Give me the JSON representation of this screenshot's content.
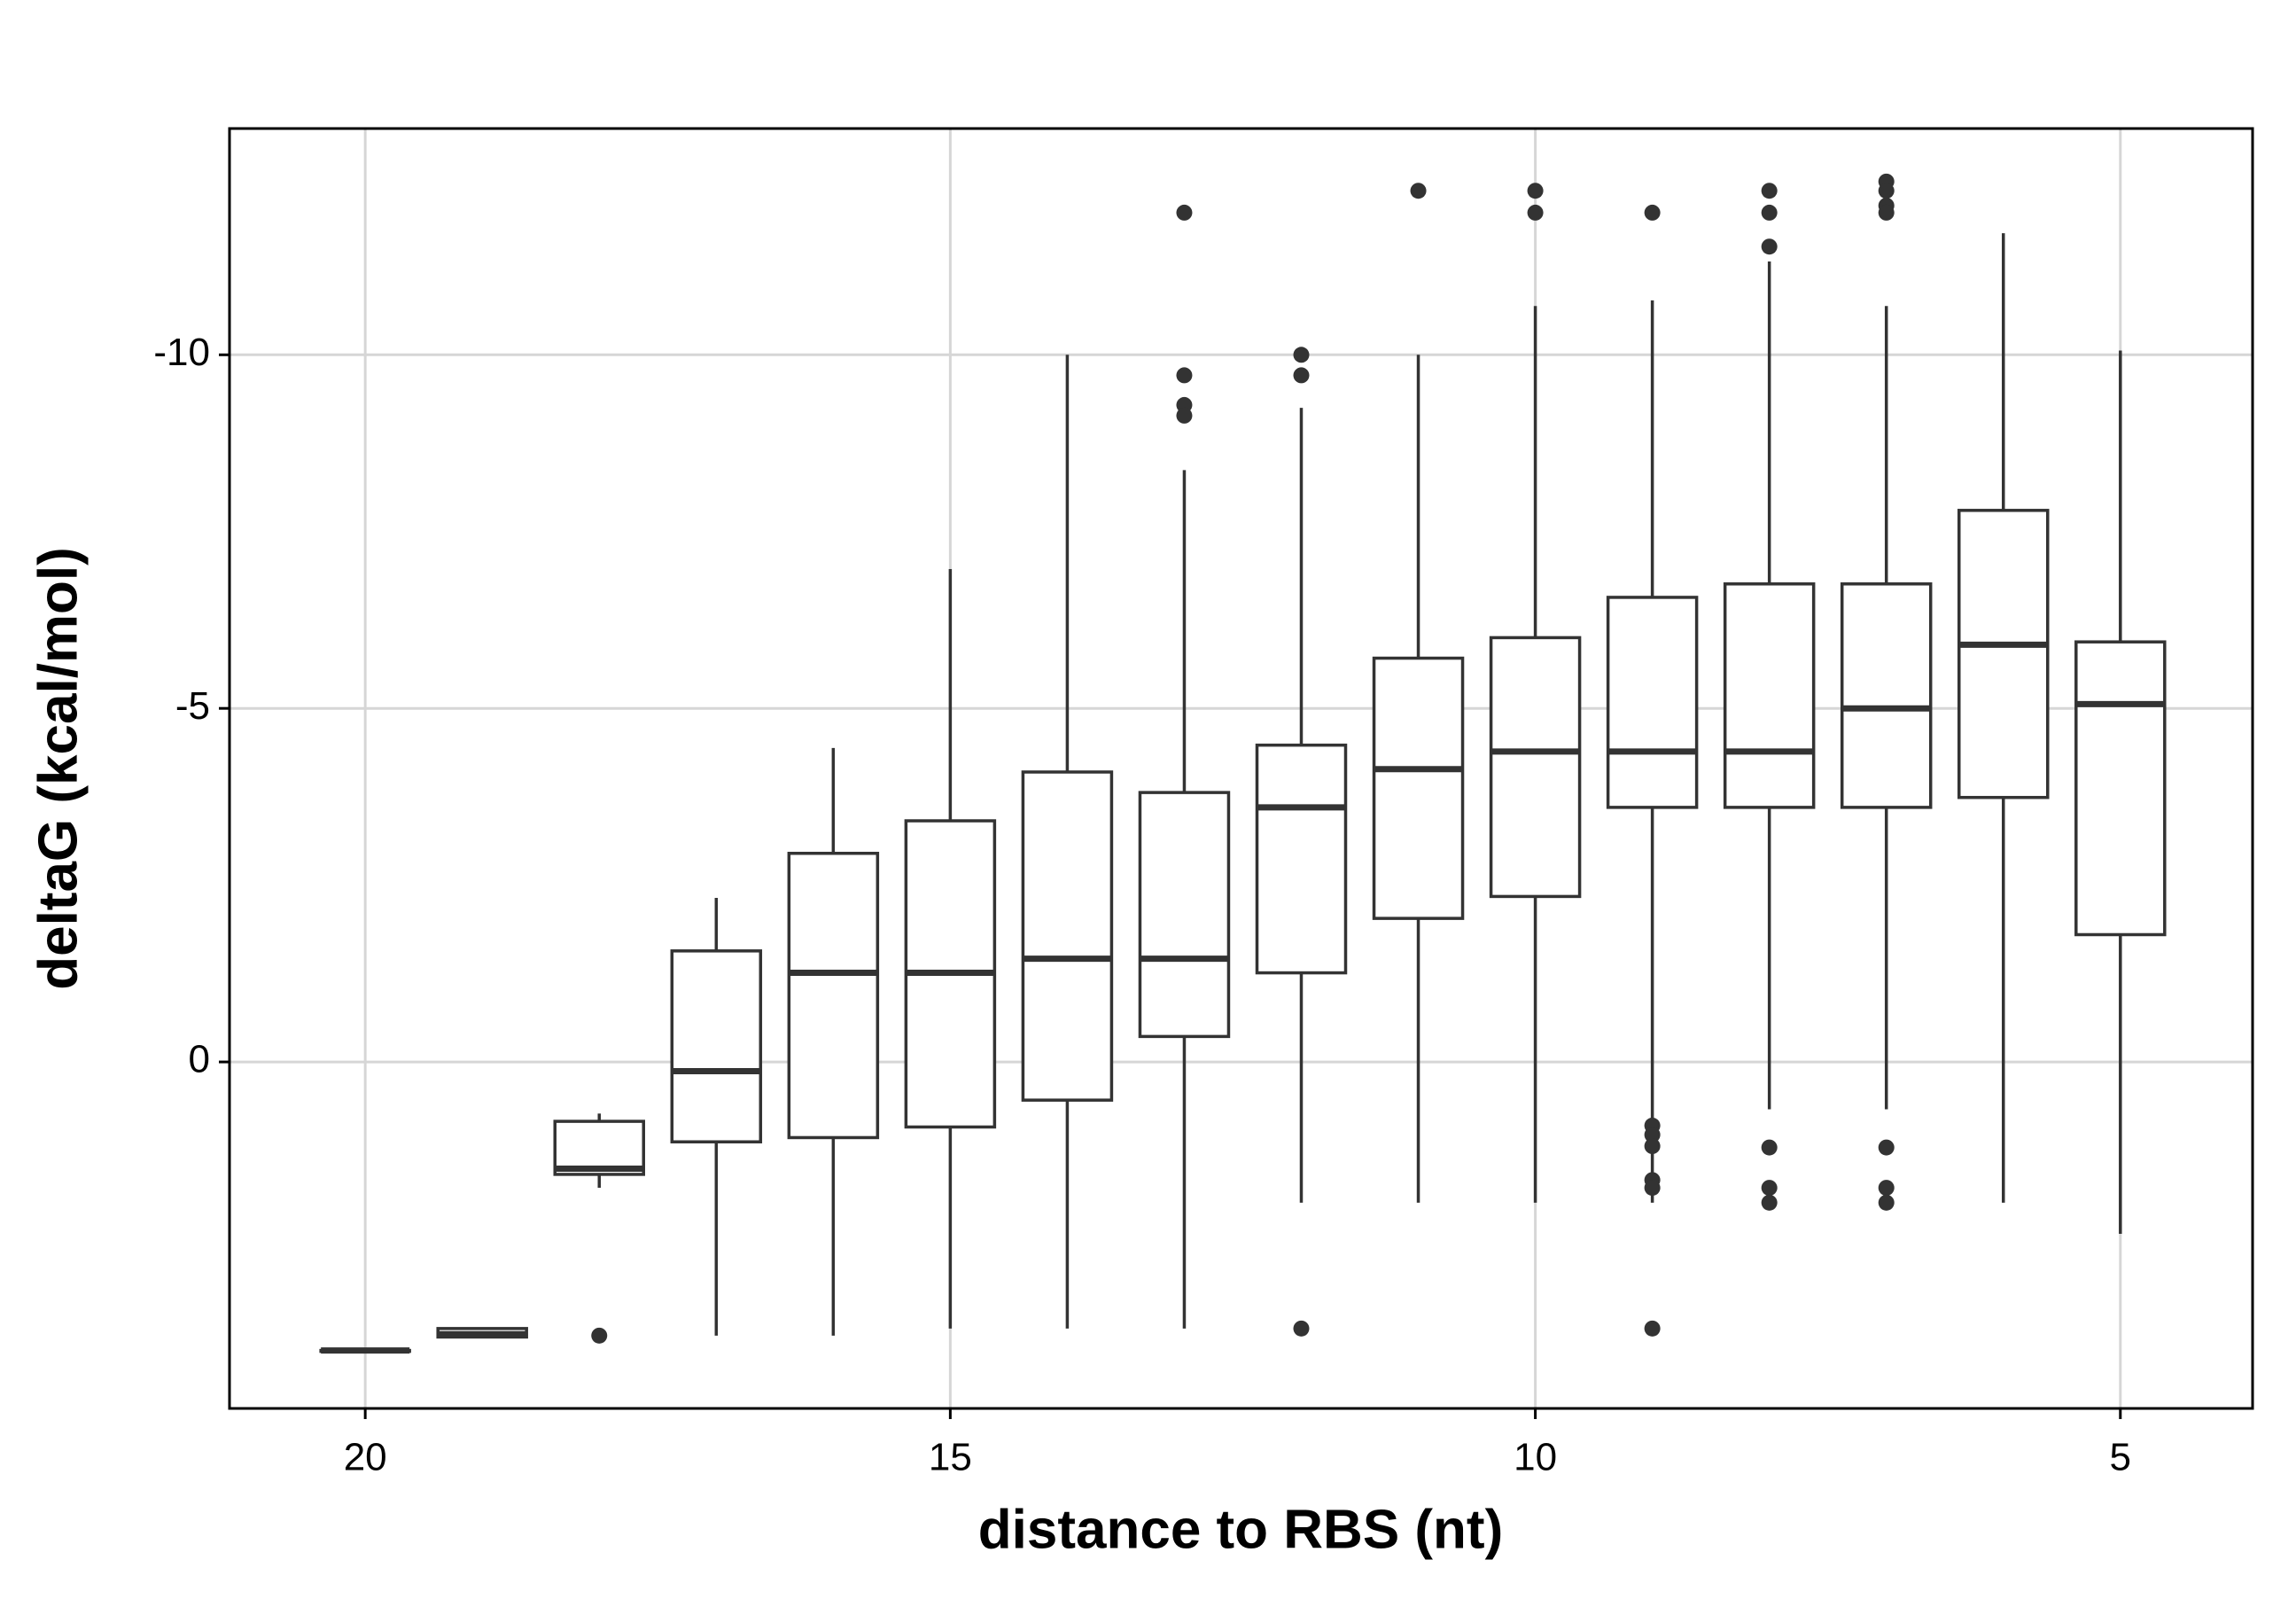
{
  "chart_data": {
    "type": "box",
    "x_label": "distance to RBS (nt)",
    "y_label": "deltaG (kcal/mol)",
    "xlim": [
      21.16,
      3.87
    ],
    "ylim": [
      4.9,
      -13.2
    ],
    "xticks": [
      20,
      15,
      10,
      5
    ],
    "yticks": [
      0,
      -5,
      -10
    ],
    "grid": true,
    "color": "#333333",
    "boxes": [
      {
        "x": 20,
        "min": 4.08,
        "q1": 4.08,
        "median": 4.08,
        "q3": 4.08,
        "max": 4.08,
        "outliers": []
      },
      {
        "x": 19,
        "min": 3.77,
        "q1": 3.77,
        "median": 3.85,
        "q3": 3.89,
        "max": 3.89,
        "outliers": []
      },
      {
        "x": 18,
        "min": 0.73,
        "q1": 0.84,
        "median": 1.51,
        "q3": 1.59,
        "max": 1.78,
        "outliers": [
          3.87
        ]
      },
      {
        "x": 17,
        "min": -2.32,
        "q1": -1.57,
        "median": 0.13,
        "q3": 1.13,
        "max": 3.87,
        "outliers": []
      },
      {
        "x": 16,
        "min": -4.44,
        "q1": -2.95,
        "median": -1.26,
        "q3": 1.07,
        "max": 3.87,
        "outliers": []
      },
      {
        "x": 15,
        "min": -6.97,
        "q1": -3.41,
        "median": -1.26,
        "q3": 0.92,
        "max": 3.77,
        "outliers": []
      },
      {
        "x": 14,
        "min": -10,
        "q1": -4.1,
        "median": -1.46,
        "q3": 0.54,
        "max": 3.77,
        "outliers": []
      },
      {
        "x": 13,
        "min": -8.37,
        "q1": -3.81,
        "median": -1.46,
        "q3": -0.36,
        "max": 3.77,
        "outliers": [
          -12.01,
          -9.71,
          -9.29,
          -9.14
        ]
      },
      {
        "x": 12,
        "min": -9.25,
        "q1": -4.48,
        "median": -3.6,
        "q3": -1.26,
        "max": 1.99,
        "outliers": [
          -10,
          -9.71,
          3.77
        ]
      },
      {
        "x": 11,
        "min": -10,
        "q1": -5.71,
        "median": -4.14,
        "q3": -2.03,
        "max": 1.99,
        "outliers": [
          -12.32
        ]
      },
      {
        "x": 10,
        "min": -10.69,
        "q1": -6,
        "median": -4.39,
        "q3": -2.34,
        "max": 1.99,
        "outliers": [
          -12.32,
          -12.01
        ]
      },
      {
        "x": 9,
        "min": -10.77,
        "q1": -6.57,
        "median": -4.39,
        "q3": -3.6,
        "max": 1.99,
        "outliers": [
          -12.01,
          0.9,
          1.03,
          1.19,
          1.67,
          1.78,
          3.77
        ]
      },
      {
        "x": 8,
        "min": -11.32,
        "q1": -6.76,
        "median": -4.39,
        "q3": -3.6,
        "max": 0.67,
        "outliers": [
          -12.32,
          -12.01,
          -11.53,
          1.21,
          1.78,
          1.99
        ]
      },
      {
        "x": 7,
        "min": -10.69,
        "q1": -6.76,
        "median": -5,
        "q3": -3.6,
        "max": 0.67,
        "outliers": [
          -12.45,
          -12.32,
          -12.11,
          -12.01,
          1.21,
          1.78,
          1.99
        ]
      },
      {
        "x": 6,
        "min": -11.72,
        "q1": -7.8,
        "median": -5.9,
        "q3": -3.74,
        "max": 1.99,
        "outliers": []
      },
      {
        "x": 5,
        "min": -10.06,
        "q1": -5.94,
        "median": -5.06,
        "q3": -1.8,
        "max": 2.43,
        "outliers": []
      }
    ]
  }
}
